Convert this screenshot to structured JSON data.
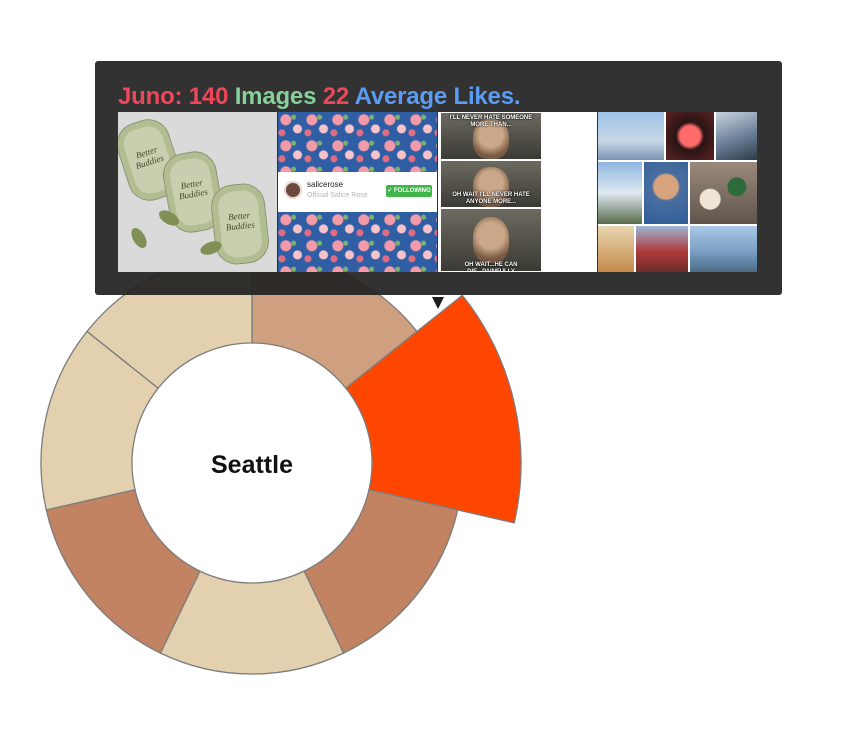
{
  "chart_data": {
    "type": "pie",
    "center_label": "Seattle",
    "slices": [
      {
        "value": 1,
        "color": "#cfa07f"
      },
      {
        "value": 1,
        "color": "#ff4600"
      },
      {
        "value": 1,
        "color": "#c18361"
      },
      {
        "value": 1,
        "color": "#e2d0ae"
      },
      {
        "value": 1,
        "color": "#c18361"
      },
      {
        "value": 1,
        "color": "#e2d0ae"
      },
      {
        "value": 1,
        "color": "#e2d0ae"
      }
    ]
  },
  "tooltip": {
    "name": "Juno:",
    "images_count": "140",
    "images_label": "Images",
    "likes_count": "22",
    "likes_label": "Average Likes."
  },
  "thumb2": {
    "username": "salicerose",
    "subtitle": "Official Salice Rose",
    "button": "✓ FOLLOWING"
  },
  "thumb3": {
    "captions": [
      "I'LL NEVER HATE SOMEONE MORE THAN...",
      "OH WAIT I'LL NEVER HATE ANYONE MORE...",
      "OH WAIT...HE CAN DIE...PAINFULLY"
    ]
  },
  "thumb1": {
    "wrapper_text": "Better Buddies"
  },
  "colors": {
    "title_red": "#f0465a",
    "title_green": "#86d09a",
    "title_blue": "#5a9cf5",
    "tooltip_bg": "#222222"
  }
}
